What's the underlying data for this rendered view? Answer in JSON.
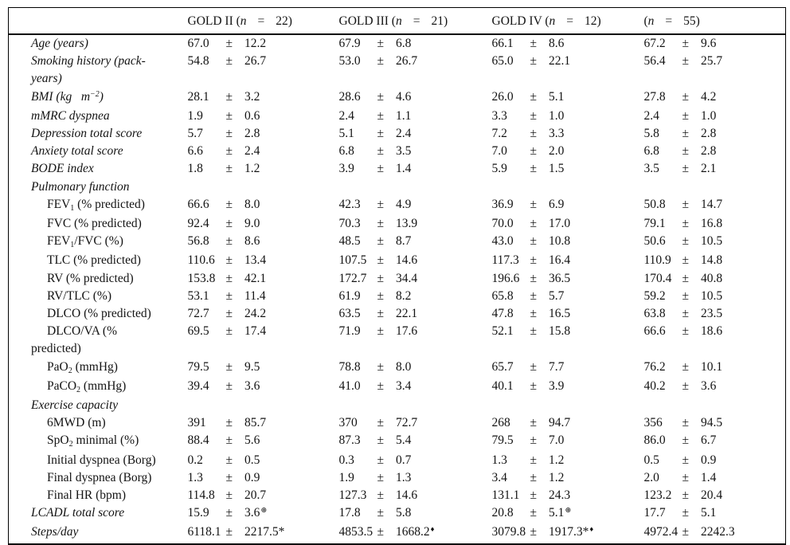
{
  "table": {
    "pm_symbol": "±",
    "columns": [
      {
        "pre": "GOLD II (",
        "n": "n",
        "eq": "=",
        "count": "22)"
      },
      {
        "pre": "GOLD III (",
        "n": "n",
        "eq": "=",
        "count": "21)"
      },
      {
        "pre": "GOLD IV (",
        "n": "n",
        "eq": "=",
        "count": "12)"
      },
      {
        "pre": "(",
        "n": "n",
        "eq": "=",
        "count": "55)"
      }
    ],
    "rows": [
      {
        "italic": true,
        "indent": false,
        "label": [
          {
            "t": "Age (years)"
          }
        ],
        "cells": [
          {
            "m": "67.0",
            "s": "12.2"
          },
          {
            "m": "67.9",
            "s": "6.8"
          },
          {
            "m": "66.1",
            "s": "8.6"
          },
          {
            "m": "67.2",
            "s": "9.6"
          }
        ]
      },
      {
        "italic": true,
        "indent": false,
        "label": [
          {
            "t": "Smoking history (pack-"
          },
          {
            "br": true
          },
          {
            "t": "years)"
          }
        ],
        "cells": [
          {
            "m": "54.8",
            "s": "26.7"
          },
          {
            "m": "53.0",
            "s": "26.7"
          },
          {
            "m": "65.0",
            "s": "22.1"
          },
          {
            "m": "56.4",
            "s": "25.7"
          }
        ]
      },
      {
        "italic": true,
        "indent": false,
        "label": [
          {
            "t": "BMI (kg  m"
          },
          {
            "sup": "−2"
          },
          {
            "t": ")"
          }
        ],
        "cells": [
          {
            "m": "28.1",
            "s": "3.2"
          },
          {
            "m": "28.6",
            "s": "4.6"
          },
          {
            "m": "26.0",
            "s": "5.1"
          },
          {
            "m": "27.8",
            "s": "4.2"
          }
        ]
      },
      {
        "italic": true,
        "indent": false,
        "label": [
          {
            "t": "mMRC dyspnea"
          }
        ],
        "cells": [
          {
            "m": "1.9",
            "s": "0.6"
          },
          {
            "m": "2.4",
            "s": "1.1"
          },
          {
            "m": "3.3",
            "s": "1.0"
          },
          {
            "m": "2.4",
            "s": "1.0"
          }
        ]
      },
      {
        "italic": true,
        "indent": false,
        "label": [
          {
            "t": "Depression total score"
          }
        ],
        "cells": [
          {
            "m": "5.7",
            "s": "2.8"
          },
          {
            "m": "5.1",
            "s": "2.4"
          },
          {
            "m": "7.2",
            "s": "3.3"
          },
          {
            "m": "5.8",
            "s": "2.8"
          }
        ]
      },
      {
        "italic": true,
        "indent": false,
        "label": [
          {
            "t": "Anxiety total score"
          }
        ],
        "cells": [
          {
            "m": "6.6",
            "s": "2.4"
          },
          {
            "m": "6.8",
            "s": "3.5"
          },
          {
            "m": "7.0",
            "s": "2.0"
          },
          {
            "m": "6.8",
            "s": "2.8"
          }
        ]
      },
      {
        "italic": true,
        "indent": false,
        "label": [
          {
            "t": "BODE index"
          }
        ],
        "cells": [
          {
            "m": "1.8",
            "s": "1.2"
          },
          {
            "m": "3.9",
            "s": "1.4"
          },
          {
            "m": "5.9",
            "s": "1.5"
          },
          {
            "m": "3.5",
            "s": "2.1"
          }
        ]
      },
      {
        "italic": true,
        "indent": false,
        "section": true,
        "label": [
          {
            "t": "Pulmonary function"
          }
        ],
        "cells": null
      },
      {
        "italic": false,
        "indent": true,
        "label": [
          {
            "t": "FEV"
          },
          {
            "sub": "1"
          },
          {
            "t": " (% predicted)"
          }
        ],
        "cells": [
          {
            "m": "66.6",
            "s": "8.0"
          },
          {
            "m": "42.3",
            "s": "4.9"
          },
          {
            "m": "36.9",
            "s": "6.9"
          },
          {
            "m": "50.8",
            "s": "14.7"
          }
        ]
      },
      {
        "italic": false,
        "indent": true,
        "label": [
          {
            "t": "FVC (% predicted)"
          }
        ],
        "cells": [
          {
            "m": "92.4",
            "s": "9.0"
          },
          {
            "m": "70.3",
            "s": "13.9"
          },
          {
            "m": "70.0",
            "s": "17.0"
          },
          {
            "m": "79.1",
            "s": "16.8"
          }
        ]
      },
      {
        "italic": false,
        "indent": true,
        "label": [
          {
            "t": "FEV"
          },
          {
            "sub": "1"
          },
          {
            "t": "/FVC (%)"
          }
        ],
        "cells": [
          {
            "m": "56.8",
            "s": "8.6"
          },
          {
            "m": "48.5",
            "s": "8.7"
          },
          {
            "m": "43.0",
            "s": "10.8"
          },
          {
            "m": "50.6",
            "s": "10.5"
          }
        ]
      },
      {
        "italic": false,
        "indent": true,
        "label": [
          {
            "t": "TLC (% predicted)"
          }
        ],
        "cells": [
          {
            "m": "110.6",
            "s": "13.4"
          },
          {
            "m": "107.5",
            "s": "14.6"
          },
          {
            "m": "117.3",
            "s": "16.4"
          },
          {
            "m": "110.9",
            "s": "14.8"
          }
        ]
      },
      {
        "italic": false,
        "indent": true,
        "label": [
          {
            "t": "RV (% predicted)"
          }
        ],
        "cells": [
          {
            "m": "153.8",
            "s": "42.1"
          },
          {
            "m": "172.7",
            "s": "34.4"
          },
          {
            "m": "196.6",
            "s": "36.5"
          },
          {
            "m": "170.4",
            "s": "40.8"
          }
        ]
      },
      {
        "italic": false,
        "indent": true,
        "label": [
          {
            "t": "RV/TLC (%)"
          }
        ],
        "cells": [
          {
            "m": "53.1",
            "s": "11.4"
          },
          {
            "m": "61.9",
            "s": "8.2"
          },
          {
            "m": "65.8",
            "s": "5.7"
          },
          {
            "m": "59.2",
            "s": "10.5"
          }
        ]
      },
      {
        "italic": false,
        "indent": true,
        "label": [
          {
            "t": "DLCO (% predicted)"
          }
        ],
        "cells": [
          {
            "m": "72.7",
            "s": "24.2"
          },
          {
            "m": "63.5",
            "s": "22.1"
          },
          {
            "m": "47.8",
            "s": "16.5"
          },
          {
            "m": "63.8",
            "s": "23.5"
          }
        ]
      },
      {
        "italic": false,
        "indent": true,
        "label": [
          {
            "t": "DLCO/VA (%"
          },
          {
            "br": true
          },
          {
            "t": "predicted)"
          }
        ],
        "cells": [
          {
            "m": "69.5",
            "s": "17.4"
          },
          {
            "m": "71.9",
            "s": "17.6"
          },
          {
            "m": "52.1",
            "s": "15.8"
          },
          {
            "m": "66.6",
            "s": "18.6"
          }
        ]
      },
      {
        "italic": false,
        "indent": true,
        "label": [
          {
            "t": "PaO"
          },
          {
            "sub": "2"
          },
          {
            "t": " (mmHg)"
          }
        ],
        "cells": [
          {
            "m": "79.5",
            "s": "9.5"
          },
          {
            "m": "78.8",
            "s": "8.0"
          },
          {
            "m": "65.7",
            "s": "7.7"
          },
          {
            "m": "76.2",
            "s": "10.1"
          }
        ]
      },
      {
        "italic": false,
        "indent": true,
        "label": [
          {
            "t": "PaCO"
          },
          {
            "sub": "2"
          },
          {
            "t": " (mmHg)"
          }
        ],
        "cells": [
          {
            "m": "39.4",
            "s": "3.6"
          },
          {
            "m": "41.0",
            "s": "3.4"
          },
          {
            "m": "40.1",
            "s": "3.9"
          },
          {
            "m": "40.2",
            "s": "3.6"
          }
        ]
      },
      {
        "italic": true,
        "indent": false,
        "section": true,
        "label": [
          {
            "t": "Exercise capacity"
          }
        ],
        "cells": null
      },
      {
        "italic": false,
        "indent": true,
        "label": [
          {
            "t": "6MWD (m)"
          }
        ],
        "cells": [
          {
            "m": "391",
            "s": "85.7"
          },
          {
            "m": "370",
            "s": "72.7"
          },
          {
            "m": "268",
            "s": "94.7"
          },
          {
            "m": "356",
            "s": "94.5"
          }
        ]
      },
      {
        "italic": false,
        "indent": true,
        "label": [
          {
            "t": "SpO"
          },
          {
            "sub": "2"
          },
          {
            "t": " minimal (%)"
          }
        ],
        "cells": [
          {
            "m": "88.4",
            "s": "5.6"
          },
          {
            "m": "87.3",
            "s": "5.4"
          },
          {
            "m": "79.5",
            "s": "7.0"
          },
          {
            "m": "86.0",
            "s": "6.7"
          }
        ]
      },
      {
        "italic": false,
        "indent": true,
        "label": [
          {
            "t": "Initial dyspnea (Borg)"
          }
        ],
        "cells": [
          {
            "m": "0.2",
            "s": "0.5"
          },
          {
            "m": "0.3",
            "s": "0.7"
          },
          {
            "m": "1.3",
            "s": "1.2"
          },
          {
            "m": "0.5",
            "s": "0.9"
          }
        ]
      },
      {
        "italic": false,
        "indent": true,
        "label": [
          {
            "t": "Final dyspnea (Borg)"
          }
        ],
        "cells": [
          {
            "m": "1.3",
            "s": "0.9"
          },
          {
            "m": "1.9",
            "s": "1.3"
          },
          {
            "m": "3.4",
            "s": "1.2"
          },
          {
            "m": "2.0",
            "s": "1.4"
          }
        ]
      },
      {
        "italic": false,
        "indent": true,
        "label": [
          {
            "t": "Final HR (bpm)"
          }
        ],
        "cells": [
          {
            "m": "114.8",
            "s": "20.7"
          },
          {
            "m": "127.3",
            "s": "14.6"
          },
          {
            "m": "131.1",
            "s": "24.3"
          },
          {
            "m": "123.2",
            "s": "20.4"
          }
        ]
      },
      {
        "italic": true,
        "indent": false,
        "label": [
          {
            "t": "LCADL total score"
          }
        ],
        "cells": [
          {
            "m": "15.9",
            "s": "3.6",
            "sup": "⊛"
          },
          {
            "m": "17.8",
            "s": "5.8"
          },
          {
            "m": "20.8",
            "s": "5.1",
            "sup": "⊛"
          },
          {
            "m": "17.7",
            "s": "5.1"
          }
        ]
      },
      {
        "italic": true,
        "indent": false,
        "label": [
          {
            "t": "Steps/day"
          }
        ],
        "cells": [
          {
            "m": "6118.1",
            "s": "2217.5",
            "star": "*"
          },
          {
            "m": "4853.5",
            "s": "1668.2",
            "sup": "♦"
          },
          {
            "m": "3079.8",
            "s": "1917.3",
            "star": "*",
            "sup": "♦"
          },
          {
            "m": "4972.4",
            "s": "2242.3"
          }
        ]
      }
    ]
  }
}
